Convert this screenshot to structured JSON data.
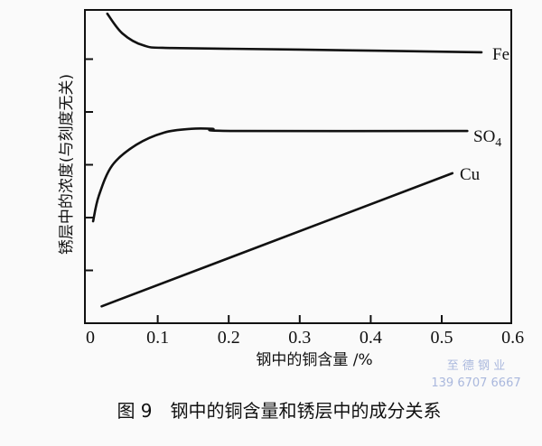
{
  "chart_data": {
    "type": "line",
    "title": "",
    "xlabel": "钢中的铜含量 /%",
    "ylabel": "锈层中的浓度(与刻度无关)",
    "xlim": [
      0,
      0.6
    ],
    "ylim": [
      0,
      6
    ],
    "x_ticks": [
      "0",
      "0.1",
      "0.2",
      "0.3",
      "0.4",
      "0.5",
      "0.6"
    ],
    "x_tick_values": [
      0,
      0.1,
      0.2,
      0.3,
      0.4,
      0.5,
      0.6
    ],
    "y_tick_values": [
      1,
      2,
      3,
      4,
      5
    ],
    "grid": false,
    "series": [
      {
        "name": "Fe",
        "label": "Fe",
        "x": [
          0.029,
          0.05,
          0.08,
          0.12,
          0.3,
          0.556
        ],
        "y": [
          5.86,
          5.49,
          5.26,
          5.21,
          5.18,
          5.13
        ]
      },
      {
        "name": "SO4",
        "label": "SO",
        "label_sub": "4",
        "x": [
          0.009,
          0.017,
          0.036,
          0.07,
          0.109,
          0.147,
          0.177,
          0.206,
          0.536
        ],
        "y": [
          1.93,
          2.41,
          2.99,
          3.38,
          3.61,
          3.68,
          3.68,
          3.64,
          3.64
        ]
      },
      {
        "name": "Cu",
        "label": "Cu",
        "x": [
          0.021,
          0.515
        ],
        "y": [
          0.32,
          2.84
        ]
      }
    ]
  },
  "caption": "图 9　钢中的铜含量和锈层中的成分关系",
  "watermark": {
    "line1": "至 德 钢 业",
    "line2": "139 6707 6667"
  }
}
